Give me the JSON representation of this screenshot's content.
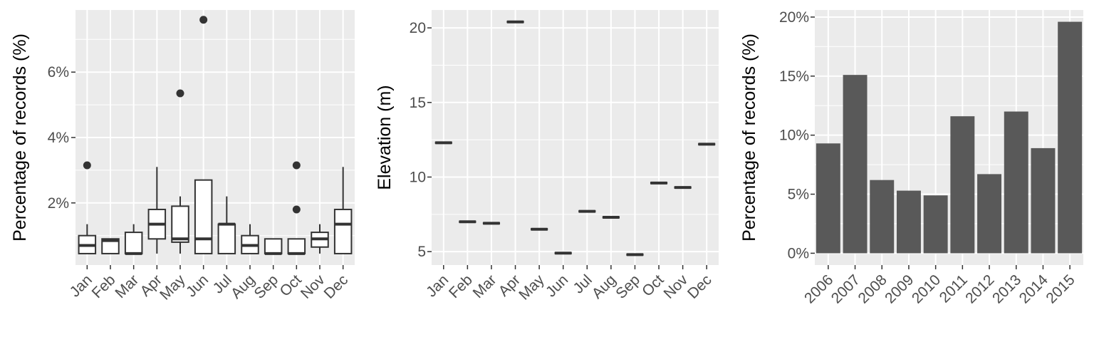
{
  "chart_data": [
    {
      "type": "box",
      "ylabel": "Percentage of records (%)",
      "ytick_labels": [
        "2%",
        "4%",
        "6%"
      ],
      "yticks": [
        2,
        4,
        6
      ],
      "ylim": [
        0.1,
        7.9
      ],
      "categories": [
        "Jan",
        "Feb",
        "Mar",
        "Apr",
        "May",
        "Jun",
        "Jul",
        "Aug",
        "Sep",
        "Oct",
        "Nov",
        "Dec"
      ],
      "boxes": [
        {
          "min": 0.45,
          "q1": 0.45,
          "median": 0.7,
          "q3": 1.0,
          "max": 1.35,
          "outliers": [
            3.15
          ]
        },
        {
          "min": 0.45,
          "q1": 0.45,
          "median": 0.85,
          "q3": 0.9,
          "max": 0.9,
          "outliers": []
        },
        {
          "min": 0.45,
          "q1": 0.45,
          "median": 0.45,
          "q3": 1.1,
          "max": 1.35,
          "outliers": []
        },
        {
          "min": 0.45,
          "q1": 0.9,
          "median": 1.35,
          "q3": 1.8,
          "max": 3.1,
          "outliers": []
        },
        {
          "min": 0.45,
          "q1": 0.8,
          "median": 0.9,
          "q3": 1.9,
          "max": 2.2,
          "outliers": [
            5.35
          ]
        },
        {
          "min": 0.45,
          "q1": 0.45,
          "median": 0.9,
          "q3": 2.7,
          "max": 2.7,
          "outliers": [
            7.6
          ]
        },
        {
          "min": 0.45,
          "q1": 0.45,
          "median": 1.35,
          "q3": 1.35,
          "max": 2.2,
          "outliers": []
        },
        {
          "min": 0.45,
          "q1": 0.45,
          "median": 0.7,
          "q3": 1.0,
          "max": 1.35,
          "outliers": []
        },
        {
          "min": 0.45,
          "q1": 0.45,
          "median": 0.45,
          "q3": 0.9,
          "max": 0.9,
          "outliers": []
        },
        {
          "min": 0.45,
          "q1": 0.45,
          "median": 0.45,
          "q3": 0.9,
          "max": 0.9,
          "outliers": [
            1.8,
            3.15
          ]
        },
        {
          "min": 0.45,
          "q1": 0.65,
          "median": 0.9,
          "q3": 1.1,
          "max": 1.35,
          "outliers": []
        },
        {
          "min": 0.45,
          "q1": 0.45,
          "median": 1.35,
          "q3": 1.8,
          "max": 3.1,
          "outliers": []
        }
      ]
    },
    {
      "type": "crossbar",
      "ylabel": "Elevation (m)",
      "yticks": [
        5,
        10,
        15,
        20
      ],
      "ytick_labels": [
        "5",
        "10",
        "15",
        "20"
      ],
      "ylim": [
        4.1,
        21.2
      ],
      "categories": [
        "Jan",
        "Feb",
        "Mar",
        "Apr",
        "May",
        "Jun",
        "Jul",
        "Aug",
        "Sep",
        "Oct",
        "Nov",
        "Dec"
      ],
      "values": [
        12.3,
        7.0,
        6.9,
        20.4,
        6.5,
        4.9,
        7.7,
        7.3,
        4.8,
        9.6,
        9.3,
        12.2
      ]
    },
    {
      "type": "bar",
      "ylabel": "Percentage of records (%)",
      "yticks": [
        0,
        5,
        10,
        15,
        20
      ],
      "ytick_labels": [
        "0%",
        "5%",
        "10%",
        "15%",
        "20%"
      ],
      "ylim": [
        -1.0,
        20.6
      ],
      "categories": [
        "2006",
        "2007",
        "2008",
        "2009",
        "2010",
        "2011",
        "2012",
        "2013",
        "2014",
        "2015"
      ],
      "values": [
        9.3,
        15.1,
        6.2,
        5.3,
        4.9,
        11.6,
        6.7,
        12.0,
        8.9,
        19.6
      ],
      "bar_color": "#595959"
    }
  ],
  "colors": {
    "panel_background": "#ebebeb",
    "grid": "#ffffff",
    "tick": "#333333",
    "tick_label": "#4d4d4d",
    "box_line": "#333333",
    "box_fill": "#ffffff"
  }
}
